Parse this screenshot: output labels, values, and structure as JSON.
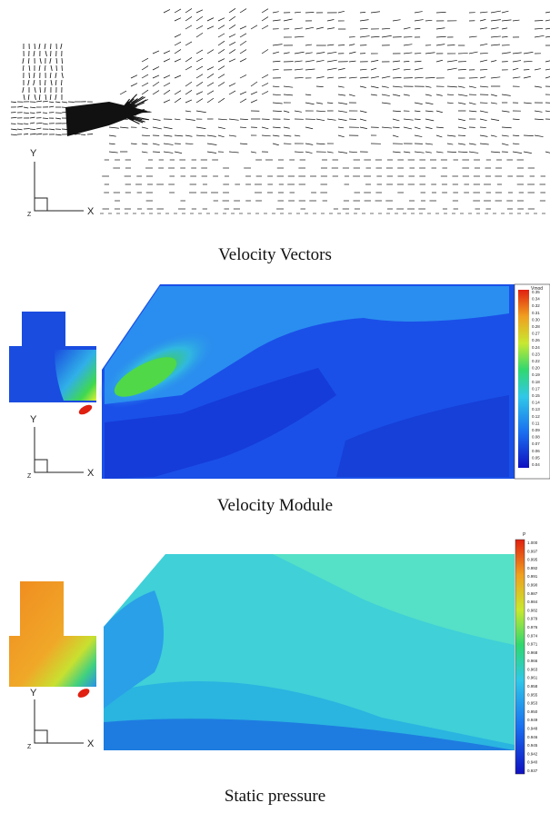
{
  "figures": [
    {
      "caption": "Velocity Vectors",
      "axes": {
        "y": "Y",
        "x": "X",
        "z": "Z"
      }
    },
    {
      "caption": "Velocity Module",
      "legend": {
        "title": "Vmod",
        "ticks": [
          "0.35",
          "0.34",
          "0.32",
          "0.31",
          "0.30",
          "0.28",
          "0.27",
          "0.26",
          "0.24",
          "0.23",
          "0.22",
          "0.20",
          "0.19",
          "0.18",
          "0.17",
          "0.15",
          "0.14",
          "0.13",
          "0.12",
          "0.11",
          "0.09",
          "0.08",
          "0.07",
          "0.06",
          "0.05",
          "0.04"
        ]
      },
      "axes": {
        "y": "Y",
        "x": "X",
        "z": "Z"
      }
    },
    {
      "caption": "Static pressure",
      "legend": {
        "title": "P",
        "ticks": [
          "1.000",
          "0.997",
          "0.995",
          "0.992",
          "0.991",
          "0.990",
          "0.987",
          "0.984",
          "0.982",
          "0.979",
          "0.976",
          "0.974",
          "0.971",
          "0.968",
          "0.966",
          "0.963",
          "0.961",
          "0.958",
          "0.955",
          "0.953",
          "0.950",
          "0.949",
          "0.948",
          "0.946",
          "0.945",
          "0.942",
          "0.940",
          "0.937"
        ]
      },
      "axes": {
        "y": "Y",
        "x": "X",
        "z": "Z"
      }
    }
  ],
  "colors": {
    "velocity_low": "#1a3fe0",
    "velocity_mid": "#2fa8e8",
    "velocity_high": "#3bd64a",
    "pressure_high": "#f08a20",
    "pressure_low": "#1e7ce0",
    "pressure_bg": "#3fd0d8"
  }
}
